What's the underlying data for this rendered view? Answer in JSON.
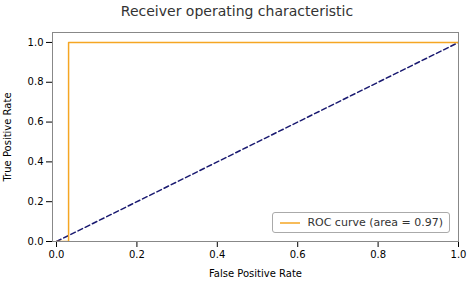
{
  "chart_data": {
    "type": "line",
    "title": "Receiver operating characteristic",
    "xlabel": "False Positive Rate",
    "ylabel": "True Positive Rate",
    "series": [
      {
        "x": [
          0.0,
          1.0
        ],
        "values": [
          0.0,
          1.0
        ],
        "color": "#191970",
        "line_style": "dashed"
      },
      {
        "name": "ROC curve (area = 0.97)",
        "x": [
          0.0,
          0.03,
          0.03,
          1.0
        ],
        "values": [
          0.0,
          0.0,
          1.0,
          1.0
        ],
        "color": "#f5a623",
        "line_style": "solid"
      }
    ],
    "xlim": [
      -0.01,
      1.0
    ],
    "ylim": [
      0.0,
      1.05
    ],
    "xticks": [
      {
        "value": 0.0,
        "label": "0.0"
      },
      0.2,
      0.4,
      0.6,
      0.8,
      {
        "value": 1.0,
        "label": "1.0"
      }
    ],
    "yticks": [
      {
        "value": 0.0,
        "label": "0.0"
      },
      0.2,
      0.4,
      0.6,
      0.8,
      {
        "value": 1.0,
        "label": "1.0"
      }
    ],
    "legend": "lower right",
    "grid": false
  }
}
